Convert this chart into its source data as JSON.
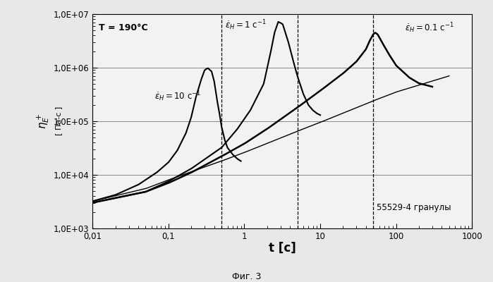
{
  "xlim": [
    0.01,
    1000
  ],
  "ylim": [
    1000.0,
    10000000.0
  ],
  "caption": "Фиг. 3",
  "dashed_vlines": [
    0.5,
    5.0,
    50.0
  ],
  "curve_eps10": {
    "x": [
      0.01,
      0.02,
      0.04,
      0.07,
      0.1,
      0.13,
      0.17,
      0.2,
      0.23,
      0.27,
      0.3,
      0.33,
      0.37,
      0.4,
      0.43,
      0.47,
      0.5,
      0.55,
      0.6,
      0.7,
      0.8,
      0.9
    ],
    "y": [
      3200,
      4200,
      6500,
      11000,
      17000,
      28000,
      60000,
      120000,
      280000,
      600000,
      900000,
      980000,
      850000,
      560000,
      280000,
      140000,
      80000,
      45000,
      32000,
      24000,
      20000,
      18000
    ]
  },
  "curve_eps1": {
    "x": [
      0.01,
      0.05,
      0.1,
      0.2,
      0.5,
      0.8,
      1.2,
      1.8,
      2.2,
      2.5,
      2.8,
      3.2,
      3.8,
      4.5,
      5.0,
      6.0,
      7.0,
      8.0,
      9.0,
      10.0
    ],
    "y": [
      3000,
      4800,
      7500,
      13000,
      32000,
      70000,
      160000,
      500000,
      1800000,
      4500000,
      7200000,
      6500000,
      3000000,
      1200000,
      700000,
      320000,
      200000,
      160000,
      140000,
      130000
    ]
  },
  "curve_eps01": {
    "x": [
      0.01,
      0.05,
      0.1,
      0.2,
      0.5,
      1.0,
      2.0,
      5.0,
      10.0,
      20.0,
      30.0,
      40.0,
      45.0,
      50.0,
      53.0,
      57.0,
      65.0,
      80.0,
      100.0,
      150.0,
      200.0,
      300.0
    ],
    "y": [
      3000,
      4800,
      7000,
      11000,
      22000,
      38000,
      72000,
      180000,
      370000,
      780000,
      1300000,
      2200000,
      3200000,
      4200000,
      4500000,
      4200000,
      3000000,
      1800000,
      1100000,
      650000,
      510000,
      440000
    ]
  },
  "curve_linear": {
    "x": [
      0.01,
      0.05,
      0.1,
      0.5,
      1.0,
      5.0,
      10.0,
      50.0,
      100.0,
      500.0
    ],
    "y": [
      3200,
      5500,
      8000,
      18000,
      26000,
      65000,
      95000,
      240000,
      350000,
      700000
    ]
  },
  "background_color": "#f0f0f0",
  "line_color": "#000000",
  "grid_color": "#888888"
}
